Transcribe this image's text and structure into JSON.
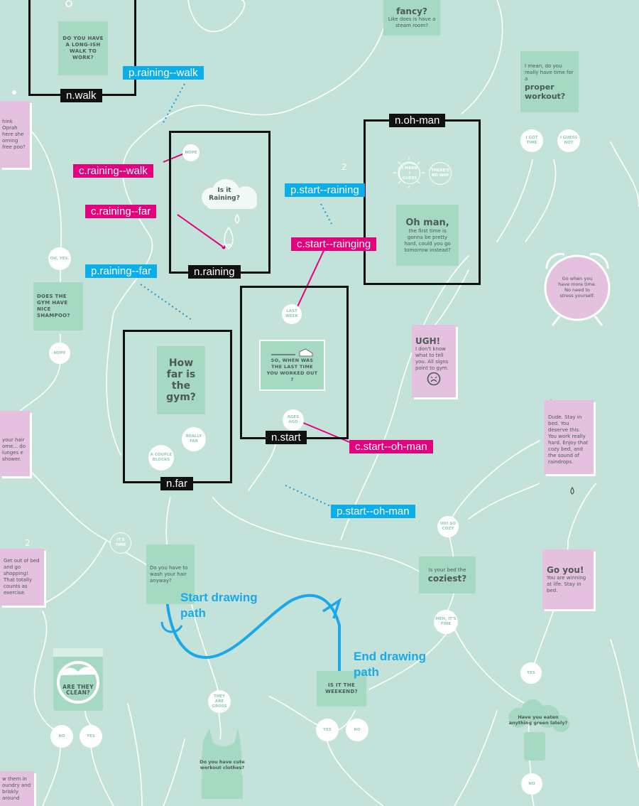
{
  "diagram": {
    "nodes": {
      "fancy_title": "fancy?",
      "fancy_sub": "Like does is have a steam room?",
      "walk_q": "DO YOU HAVE A LONG-ISH WALK TO WORK?",
      "raining_q": "Is it Raining?",
      "far_q": "How far is the gym?",
      "start_q": "SO, WHEN WAS THE LAST TIME YOU WORKED OUT ?",
      "ohman_title": "Oh man,",
      "ohman_body": "the first time is gonna be pretty hard, could you go tomorrow instead?",
      "workout_q_small": "I mean, do you really have time for a",
      "workout_q_big": "proper workout?",
      "oprah": "hink Oprah here she orning free poo?",
      "gym_shampoo": "DOES THE GYM HAVE NICE SHAMPOO?",
      "shower_text": "your hair ome... do lunges e shower.",
      "shopping": "Get out of bed and go shopping! That totally counts as exercise.",
      "wash_hair": "Do you have to wash your hair anyway?",
      "ugh_title": "UGH!",
      "ugh_body": "I don't know what to tell you. All signs point to gym.",
      "clock_text": "Go when you have more time. No need to stress yourself.",
      "dude": "Dude. Stay in bed. You deserve this. You work really hard. Enjoy that cozy bed, and the sound of raindrops.",
      "goyou_title": "Go you!",
      "goyou_body": "You are winning at life. Stay in bed.",
      "bed_small": "Is your bed the",
      "bed_big": "coziest?",
      "weekend": "IS IT THE WEEKEND?",
      "clean": "ARE THEY CLEAN?",
      "cute_clothes": "Do you have cute workout clothes?",
      "green": "Have you eaten anything green lately?",
      "laundry": "w them in oundry and briskly around"
    },
    "answers": {
      "nope_top": "NOPE",
      "yup": "YUP!",
      "mean_guess": "I MEAN I GUESS",
      "no_way": "THERE'S NO WAY",
      "got_time": "I GOT TIME",
      "guess_not": "I GUESS NOT",
      "oh_yes": "OH, YES.",
      "nope_gym": "NOPE",
      "last_week": "LAST WEEK",
      "ages_ago": "AGES AGO",
      "couple_blocks": "A COUPLE BLOCKS",
      "really_far": "REALLY FAR",
      "its_time": "IT'S TIME",
      "uh_so_cozy": "UH! SO COZY",
      "meh_fine": "MEH, IT'S FINE",
      "yes_right": "YES",
      "no_right": "NO",
      "they_gross": "THEY ARE GROSS",
      "no_left": "NO",
      "yes_left": "YES",
      "yes_mid": "YES",
      "no_mid": "NO"
    },
    "labels": {
      "n_walk": "n.walk",
      "n_ohman": "n.oh-man",
      "n_raining": "n.raining",
      "n_start": "n.start",
      "n_far": "n.far",
      "p_raining_walk": "p.raining--walk",
      "p_start_raining": "p.start--raining",
      "p_raining_far": "p.raining--far",
      "p_start_ohman": "p.start--oh-man",
      "c_raining_walk": "c.raining--walk",
      "c_raining_far": "c.raining--far",
      "c_start_rainging": "c.start--rainging",
      "c_start_ohman": "c.start--oh-man"
    },
    "annotations": {
      "start_path": "Start drawing path",
      "end_path": "End drawing path"
    },
    "step_markers": [
      "2",
      "2"
    ]
  },
  "colors": {
    "background": "#c3e2d9",
    "card_green": "#a6d9c2",
    "card_pink": "#e4c1df",
    "node_label": "#111111",
    "path_label": "#0aaee8",
    "connector_label": "#e5007e",
    "drawn_path": "#1aa8ea"
  }
}
